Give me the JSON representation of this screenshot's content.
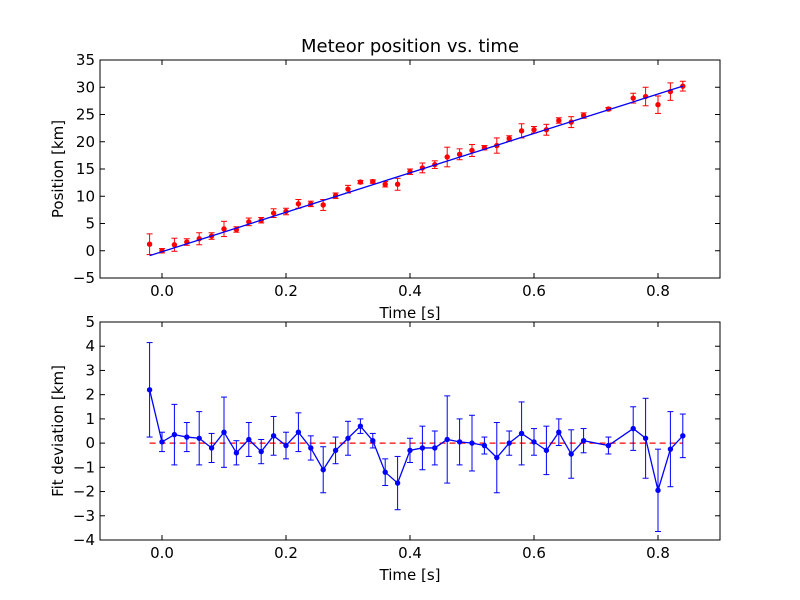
{
  "chart_data": [
    {
      "type": "scatter",
      "title": "Meteor position vs. time",
      "xlabel": "Time [s]",
      "ylabel": "Position [km]",
      "xlim": [
        -0.1,
        0.9
      ],
      "ylim": [
        -5,
        35
      ],
      "xticks": [
        0.0,
        0.2,
        0.4,
        0.6,
        0.8
      ],
      "xtick_labels": [
        "0.0",
        "0.2",
        "0.4",
        "0.6",
        "0.8"
      ],
      "yticks": [
        -5,
        0,
        5,
        10,
        15,
        20,
        25,
        30,
        35
      ],
      "ytick_labels": [
        "−5",
        "0",
        "5",
        "10",
        "15",
        "20",
        "25",
        "30",
        "35"
      ],
      "grid": false,
      "series": [
        {
          "style": "points-with-errorbars",
          "color": "#ff0000",
          "x": [
            -0.02,
            0.0,
            0.02,
            0.04,
            0.06,
            0.08,
            0.1,
            0.12,
            0.14,
            0.16,
            0.18,
            0.2,
            0.22,
            0.24,
            0.26,
            0.28,
            0.3,
            0.32,
            0.34,
            0.36,
            0.38,
            0.4,
            0.42,
            0.44,
            0.46,
            0.48,
            0.5,
            0.52,
            0.54,
            0.56,
            0.58,
            0.6,
            0.62,
            0.64,
            0.66,
            0.68,
            0.72,
            0.76,
            0.78,
            0.8,
            0.82,
            0.84
          ],
          "y": [
            1.2,
            0.0,
            1.1,
            1.6,
            2.2,
            2.7,
            4.0,
            3.9,
            5.3,
            5.6,
            6.9,
            7.2,
            8.6,
            8.6,
            8.4,
            10.1,
            11.3,
            12.6,
            12.7,
            12.2,
            12.2,
            14.5,
            15.2,
            15.8,
            17.2,
            17.7,
            18.4,
            18.9,
            19.3,
            20.6,
            22.0,
            22.2,
            22.2,
            23.9,
            23.6,
            24.8,
            26.0,
            28.0,
            28.3,
            26.8,
            29.2,
            30.2
          ],
          "yerr": [
            1.9,
            0.4,
            1.2,
            0.6,
            1.1,
            0.6,
            1.4,
            0.5,
            0.7,
            0.5,
            0.8,
            0.6,
            0.8,
            0.5,
            1.0,
            0.5,
            0.7,
            0.3,
            0.3,
            0.5,
            1.1,
            0.5,
            0.9,
            0.7,
            1.8,
            1.0,
            1.1,
            0.4,
            1.4,
            0.5,
            1.3,
            0.6,
            1.0,
            0.5,
            1.0,
            0.5,
            0.3,
            0.9,
            1.7,
            1.6,
            1.6,
            0.9
          ]
        },
        {
          "style": "line",
          "color": "#0000ff",
          "x": [
            -0.02,
            0.84
          ],
          "y": [
            -0.9,
            30.2
          ]
        }
      ]
    },
    {
      "type": "line",
      "title": "",
      "xlabel": "Time [s]",
      "ylabel": "Fit deviation [km]",
      "xlim": [
        -0.1,
        0.9
      ],
      "ylim": [
        -4,
        5
      ],
      "xticks": [
        0.0,
        0.2,
        0.4,
        0.6,
        0.8
      ],
      "xtick_labels": [
        "0.0",
        "0.2",
        "0.4",
        "0.6",
        "0.8"
      ],
      "yticks": [
        -4,
        -3,
        -2,
        -1,
        0,
        1,
        2,
        3,
        4,
        5
      ],
      "ytick_labels": [
        "−4",
        "−3",
        "−2",
        "−1",
        "0",
        "1",
        "2",
        "3",
        "4",
        "5"
      ],
      "grid": false,
      "reference_line": {
        "y": 0,
        "style": "dashed",
        "color": "#ff0000"
      },
      "series": [
        {
          "style": "line-with-errorbars",
          "color": "#0000ff",
          "x": [
            -0.02,
            0.0,
            0.02,
            0.04,
            0.06,
            0.08,
            0.1,
            0.12,
            0.14,
            0.16,
            0.18,
            0.2,
            0.22,
            0.24,
            0.26,
            0.28,
            0.3,
            0.32,
            0.34,
            0.36,
            0.38,
            0.4,
            0.42,
            0.44,
            0.46,
            0.48,
            0.5,
            0.52,
            0.54,
            0.56,
            0.58,
            0.6,
            0.62,
            0.64,
            0.66,
            0.68,
            0.72,
            0.76,
            0.78,
            0.8,
            0.82,
            0.84
          ],
          "y": [
            2.2,
            0.05,
            0.35,
            0.25,
            0.2,
            -0.2,
            0.45,
            -0.4,
            0.15,
            -0.35,
            0.3,
            -0.1,
            0.45,
            -0.2,
            -1.1,
            -0.3,
            0.2,
            0.7,
            0.1,
            -1.2,
            -1.65,
            -0.3,
            -0.2,
            -0.2,
            0.15,
            0.05,
            0.0,
            -0.1,
            -0.6,
            0.0,
            0.4,
            0.05,
            -0.3,
            0.45,
            -0.45,
            0.1,
            -0.1,
            0.6,
            0.2,
            -1.95,
            -0.25,
            0.3
          ],
          "yerr": [
            1.95,
            0.4,
            1.25,
            0.6,
            1.1,
            0.6,
            1.45,
            0.5,
            0.7,
            0.5,
            0.8,
            0.55,
            0.8,
            0.5,
            0.95,
            0.55,
            0.7,
            0.3,
            0.3,
            0.55,
            1.1,
            0.5,
            0.9,
            0.7,
            1.8,
            0.95,
            1.15,
            0.35,
            1.45,
            0.5,
            1.3,
            0.55,
            1.0,
            0.55,
            1.0,
            0.5,
            0.35,
            0.9,
            1.65,
            1.7,
            1.55,
            0.9
          ]
        }
      ]
    }
  ]
}
